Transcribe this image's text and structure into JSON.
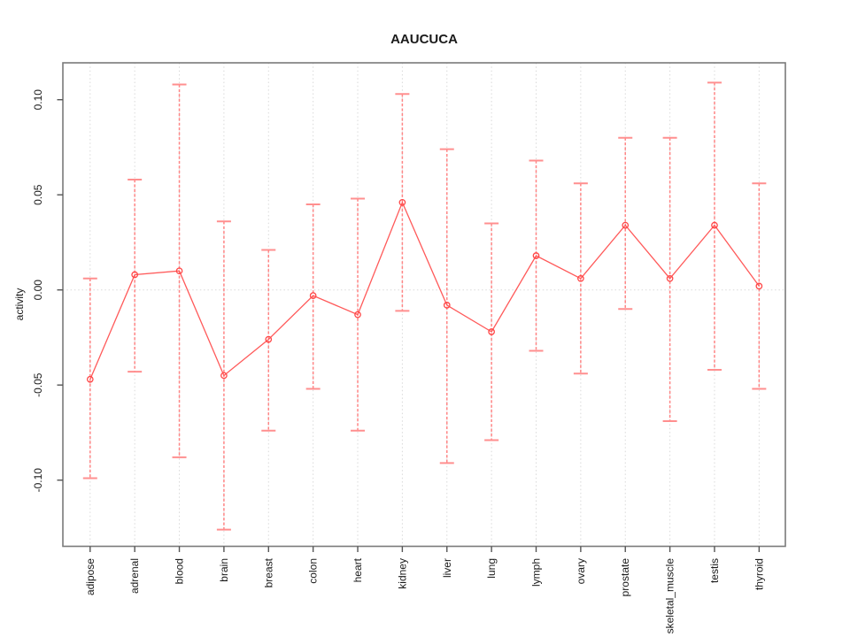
{
  "chart_data": {
    "type": "line",
    "title": "AAUCUCA",
    "xlabel": "",
    "ylabel": "activity",
    "legend": "none",
    "grid": {
      "vertical": "dotted line at every category",
      "horizontal": "dotted line at y=0 only"
    },
    "ylim": [
      -0.135,
      0.119
    ],
    "yticks": {
      "values": [
        0.1,
        0.05,
        0.0,
        -0.05,
        -0.1
      ],
      "labels": [
        "0.10",
        "0.05",
        "0.00",
        "-0.05",
        "-0.10"
      ]
    },
    "categories": [
      "adipose",
      "adrenal",
      "blood",
      "brain",
      "breast",
      "colon",
      "heart",
      "kidney",
      "liver",
      "lung",
      "lymph",
      "ovary",
      "prostate",
      "skeletal_muscle",
      "testis",
      "thyroid"
    ],
    "series": [
      {
        "name": "activity",
        "marker": "open-circle",
        "values": [
          -0.047,
          0.008,
          0.01,
          -0.045,
          -0.026,
          -0.003,
          -0.013,
          0.046,
          -0.008,
          -0.022,
          0.018,
          0.006,
          0.034,
          0.006,
          0.034,
          0.002
        ],
        "error_low": [
          -0.099,
          -0.043,
          -0.088,
          -0.126,
          -0.074,
          -0.052,
          -0.074,
          -0.011,
          -0.091,
          -0.079,
          -0.032,
          -0.044,
          -0.01,
          -0.069,
          -0.042,
          -0.052
        ],
        "error_high": [
          0.006,
          0.058,
          0.108,
          0.036,
          0.021,
          0.045,
          0.048,
          0.103,
          0.074,
          0.035,
          0.068,
          0.056,
          0.08,
          0.08,
          0.109,
          0.056
        ]
      }
    ],
    "colors": {
      "point": "#ff4747",
      "connect_line": "#ff5a5a",
      "error_bar": "#ff8585",
      "error_cap": "#ff8f8f",
      "grid_line": "#d9d9d9",
      "plot_border": "#7a7a7a",
      "tick": "#555555",
      "text": "#1a1a1a",
      "background": "#ffffff"
    }
  }
}
